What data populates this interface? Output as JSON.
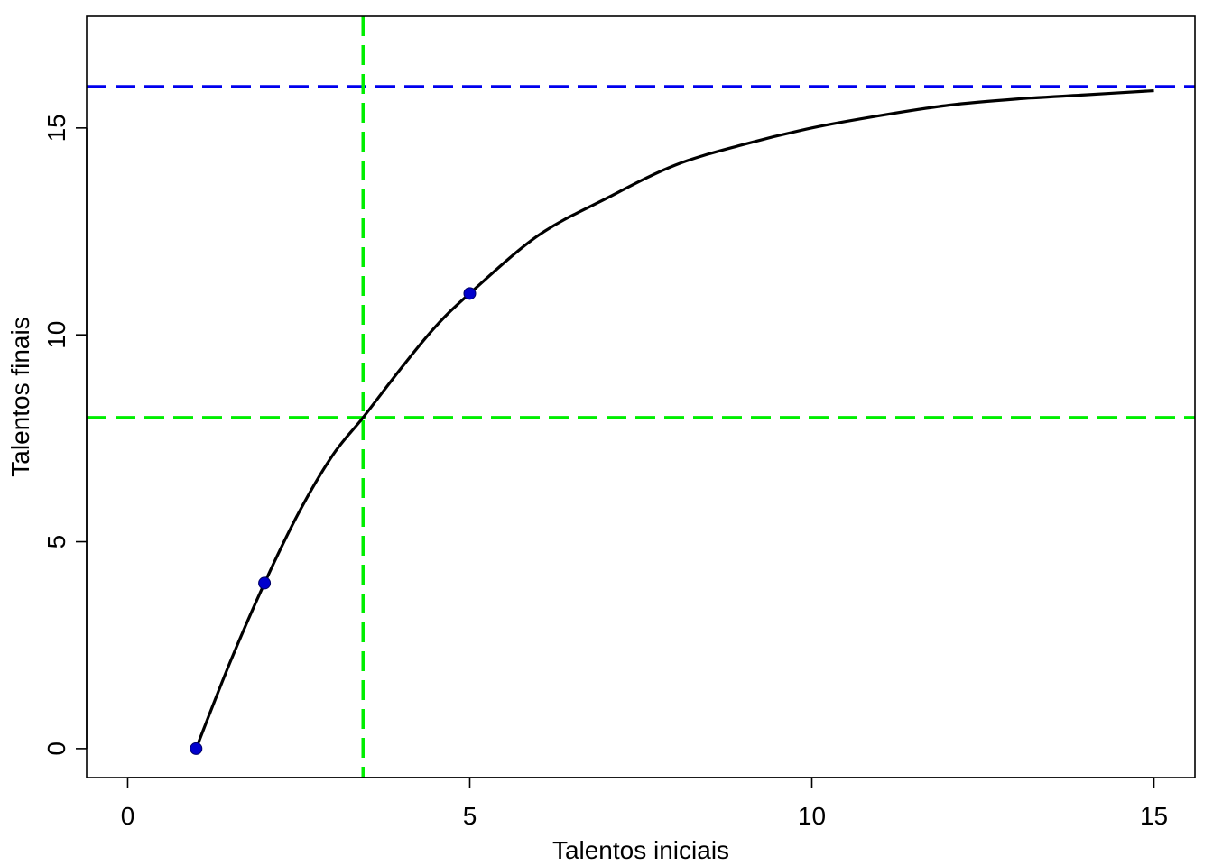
{
  "chart_data": {
    "type": "line",
    "title": "",
    "xlabel": "Talentos iniciais",
    "ylabel": "Talentos finais",
    "xlim": [
      -0.6,
      15.6
    ],
    "ylim": [
      -0.7,
      17.7
    ],
    "xticks": [
      0,
      5,
      10,
      15
    ],
    "yticks": [
      0,
      5,
      10,
      15
    ],
    "grid": false,
    "curve": {
      "x": [
        1,
        1.5,
        2,
        2.5,
        3,
        3.44,
        4,
        4.5,
        5,
        6,
        7,
        8,
        9,
        10,
        11,
        12,
        13,
        14,
        15
      ],
      "y": [
        0,
        2.1,
        4.0,
        5.7,
        7.1,
        8.0,
        9.2,
        10.2,
        11.0,
        12.4,
        13.3,
        14.1,
        14.6,
        15.0,
        15.3,
        15.55,
        15.7,
        15.8,
        15.9
      ],
      "color": "#000000"
    },
    "points": {
      "x": [
        1,
        2,
        5
      ],
      "y": [
        0,
        4,
        11
      ],
      "color": "#0000cd"
    },
    "reference_lines": [
      {
        "orientation": "horizontal",
        "value": 16,
        "color": "#0000ee",
        "style": "dashed"
      },
      {
        "orientation": "horizontal",
        "value": 8,
        "color": "#00ee00",
        "style": "dashed"
      },
      {
        "orientation": "vertical",
        "value": 3.44,
        "color": "#00ee00",
        "style": "dashed"
      }
    ]
  }
}
